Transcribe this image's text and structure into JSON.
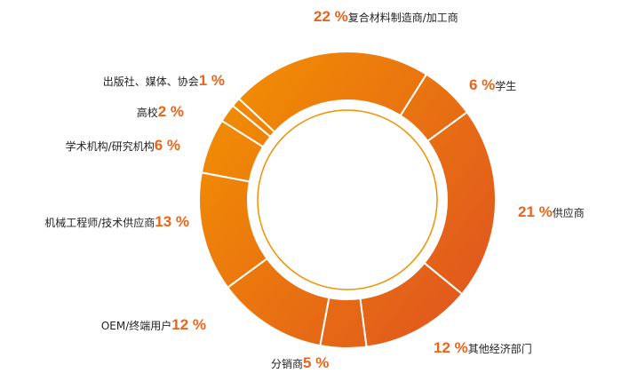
{
  "chart_data": {
    "type": "donut",
    "categories": [
      "复合材料制造商/加工商",
      "学生",
      "供应商",
      "其他经济部门",
      "分销商",
      "OEM/终端用户",
      "机械工程师/技术供应商",
      "学术机构/研究机构",
      "高校",
      "出版社、媒体、协会"
    ],
    "values": [
      22,
      6,
      21,
      12,
      5,
      12,
      13,
      6,
      2,
      1
    ],
    "value_labels": [
      "22 %",
      "6 %",
      "21 %",
      "12 %",
      "5 %",
      "12 %",
      "13 %",
      "6 %",
      "2 %",
      "1 %"
    ],
    "color": [
      "#f39200",
      "#e0561f"
    ],
    "label_color": "#e8651c"
  }
}
